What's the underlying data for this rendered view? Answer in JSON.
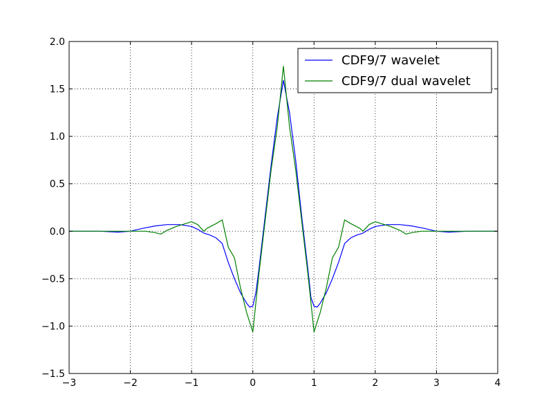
{
  "chart_data": {
    "type": "line",
    "title": "",
    "xlabel": "",
    "ylabel": "",
    "xlim": [
      -3,
      4
    ],
    "ylim": [
      -1.5,
      2.0
    ],
    "x_ticks": [
      -3,
      -2,
      -1,
      0,
      1,
      2,
      3,
      4
    ],
    "x_tick_labels": [
      "−3",
      "−2",
      "−1",
      "0",
      "1",
      "2",
      "3",
      "4"
    ],
    "y_ticks": [
      -1.5,
      -1.0,
      -0.5,
      0.0,
      0.5,
      1.0,
      1.5,
      2.0
    ],
    "y_tick_labels": [
      "−1.5",
      "−1.0",
      "−0.5",
      "0.0",
      "0.5",
      "1.0",
      "1.5",
      "2.0"
    ],
    "grid": true,
    "legend_position": "top-right",
    "series": [
      {
        "name": "CDF9/7 wavelet",
        "color": "#0000ff",
        "points": [
          [
            -3.0,
            0.0
          ],
          [
            -2.5,
            0.0
          ],
          [
            -2.2,
            -0.01
          ],
          [
            -2.0,
            0.0
          ],
          [
            -1.8,
            0.03
          ],
          [
            -1.6,
            0.055
          ],
          [
            -1.4,
            0.07
          ],
          [
            -1.2,
            0.07
          ],
          [
            -1.0,
            0.05
          ],
          [
            -0.9,
            0.02
          ],
          [
            -0.8,
            -0.02
          ],
          [
            -0.7,
            -0.04
          ],
          [
            -0.6,
            -0.07
          ],
          [
            -0.5,
            -0.13
          ],
          [
            -0.4,
            -0.33
          ],
          [
            -0.3,
            -0.5
          ],
          [
            -0.2,
            -0.65
          ],
          [
            -0.1,
            -0.76
          ],
          [
            -0.05,
            -0.8
          ],
          [
            0.0,
            -0.79
          ],
          [
            0.05,
            -0.65
          ],
          [
            0.1,
            -0.4
          ],
          [
            0.2,
            0.15
          ],
          [
            0.3,
            0.7
          ],
          [
            0.4,
            1.2
          ],
          [
            0.5,
            1.59
          ],
          [
            0.6,
            1.25
          ],
          [
            0.7,
            0.75
          ],
          [
            0.8,
            0.15
          ],
          [
            0.9,
            -0.4
          ],
          [
            0.95,
            -0.7
          ],
          [
            1.0,
            -0.79
          ],
          [
            1.05,
            -0.8
          ],
          [
            1.1,
            -0.76
          ],
          [
            1.2,
            -0.65
          ],
          [
            1.3,
            -0.5
          ],
          [
            1.4,
            -0.33
          ],
          [
            1.5,
            -0.13
          ],
          [
            1.6,
            -0.07
          ],
          [
            1.7,
            -0.04
          ],
          [
            1.8,
            -0.02
          ],
          [
            1.9,
            0.02
          ],
          [
            2.0,
            0.05
          ],
          [
            2.2,
            0.07
          ],
          [
            2.4,
            0.07
          ],
          [
            2.6,
            0.055
          ],
          [
            2.8,
            0.03
          ],
          [
            3.0,
            0.0
          ],
          [
            3.2,
            -0.01
          ],
          [
            3.5,
            0.0
          ],
          [
            4.0,
            0.0
          ]
        ]
      },
      {
        "name": "CDF9/7 dual wavelet",
        "color": "#008000",
        "points": [
          [
            -3.0,
            0.0
          ],
          [
            -2.0,
            0.0
          ],
          [
            -1.75,
            0.0
          ],
          [
            -1.6,
            -0.015
          ],
          [
            -1.5,
            -0.03
          ],
          [
            -1.4,
            0.01
          ],
          [
            -1.25,
            0.05
          ],
          [
            -1.1,
            0.08
          ],
          [
            -1.0,
            0.1
          ],
          [
            -0.9,
            0.07
          ],
          [
            -0.8,
            0.0
          ],
          [
            -0.75,
            0.03
          ],
          [
            -0.6,
            0.08
          ],
          [
            -0.5,
            0.12
          ],
          [
            -0.4,
            -0.17
          ],
          [
            -0.3,
            -0.28
          ],
          [
            -0.2,
            -0.6
          ],
          [
            -0.1,
            -0.86
          ],
          [
            0.0,
            -1.06
          ],
          [
            0.1,
            -0.45
          ],
          [
            0.2,
            0.1
          ],
          [
            0.3,
            0.65
          ],
          [
            0.4,
            1.1
          ],
          [
            0.5,
            1.74
          ],
          [
            0.6,
            1.1
          ],
          [
            0.7,
            0.65
          ],
          [
            0.8,
            0.1
          ],
          [
            0.9,
            -0.45
          ],
          [
            1.0,
            -1.06
          ],
          [
            1.1,
            -0.86
          ],
          [
            1.2,
            -0.6
          ],
          [
            1.3,
            -0.28
          ],
          [
            1.4,
            -0.17
          ],
          [
            1.5,
            0.12
          ],
          [
            1.6,
            0.08
          ],
          [
            1.75,
            0.03
          ],
          [
            1.8,
            0.0
          ],
          [
            1.9,
            0.07
          ],
          [
            2.0,
            0.1
          ],
          [
            2.1,
            0.08
          ],
          [
            2.25,
            0.05
          ],
          [
            2.4,
            0.01
          ],
          [
            2.5,
            -0.03
          ],
          [
            2.6,
            -0.015
          ],
          [
            2.75,
            0.0
          ],
          [
            3.0,
            0.0
          ],
          [
            4.0,
            0.0
          ]
        ]
      }
    ]
  }
}
